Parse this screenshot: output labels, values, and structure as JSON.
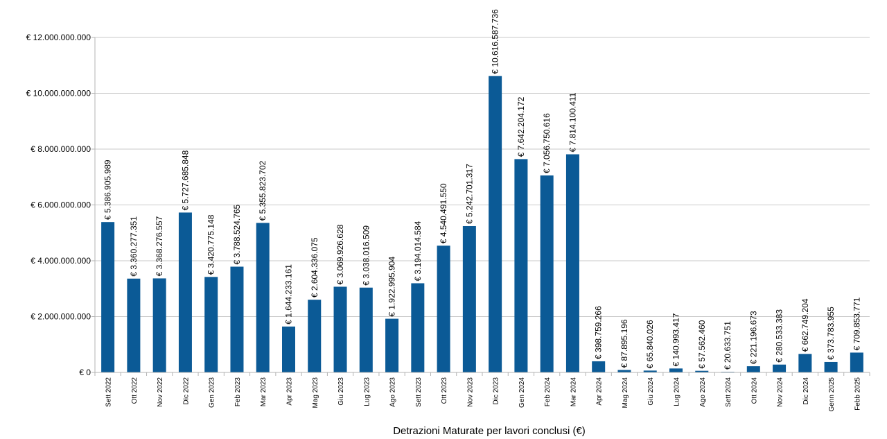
{
  "chart_data": {
    "type": "bar",
    "title": "",
    "xlabel": "Detrazioni Maturate per lavori conclusi (€)",
    "ylabel": "",
    "ylim": [
      0,
      12000000000
    ],
    "yticks": [
      0,
      2000000000,
      4000000000,
      6000000000,
      8000000000,
      10000000000,
      12000000000
    ],
    "ytick_labels": [
      "€ 0",
      "€ 2.000.000.000",
      "€ 4.000.000.000",
      "€ 6.000.000.000",
      "€ 8.000.000.000",
      "€ 10.000.000.000",
      "€ 12.000.000.000"
    ],
    "grid": true,
    "legend": "none",
    "bar_color": "#0b5a96",
    "categories": [
      "Sett 2022",
      "Ott 2022",
      "Nov 2022",
      "Dic 2022",
      "Gen 2023",
      "Feb 2023",
      "Mar 2023",
      "Apr 2023",
      "Mag 2023",
      "Giu 2023",
      "Lug 2023",
      "Ago 2023",
      "Sett 2023",
      "Ott 2023",
      "Nov 2023",
      "Dic 2023",
      "Gen 2024",
      "Feb 2024",
      "Mar 2024",
      "Apr 2024",
      "Mag 2024",
      "Giu 2024",
      "Lug 2024",
      "Ago 2024",
      "Sett 2024",
      "Ott 2024",
      "Nov 2024",
      "Dic 2024",
      "Genn 2025",
      "Febb 2025"
    ],
    "values": [
      5386905989,
      3360277351,
      3368276557,
      5727685848,
      3420775148,
      3788524765,
      5355823702,
      1644233161,
      2604336075,
      3069926628,
      3038016509,
      1922995904,
      3194014584,
      4540491550,
      5242701317,
      10616587736,
      7642204172,
      7056750616,
      7814100411,
      398759266,
      87895196,
      65840026,
      140993417,
      57562460,
      20633751,
      221196673,
      280533383,
      662749204,
      373783955,
      709853771
    ],
    "data_labels": [
      "€ 5.386.905.989",
      "€ 3.360.277.351",
      "€ 3.368.276.557",
      "€ 5.727.685.848",
      "€ 3.420.775.148",
      "€ 3.788.524.765",
      "€ 5.355.823.702",
      "€ 1.644.233.161",
      "€ 2.604.336.075",
      "€ 3.069.926.628",
      "€ 3.038.016.509",
      "€ 1.922.995.904",
      "€ 3.194.014.584",
      "€ 4.540.491.550",
      "€ 5.242.701.317",
      "€ 10.616.587.736",
      "€ 7.642.204.172",
      "€ 7.056.750.616",
      "€ 7.814.100.411",
      "€ 398.759.266",
      "€ 87.895.196",
      "€ 65.840.026",
      "€ 140.993.417",
      "€ 57.562.460",
      "€ 20.633.751",
      "€ 221.196.673",
      "€ 280.533.383",
      "€ 662.749.204",
      "€ 373.783.955",
      "€ 709.853.771"
    ]
  }
}
